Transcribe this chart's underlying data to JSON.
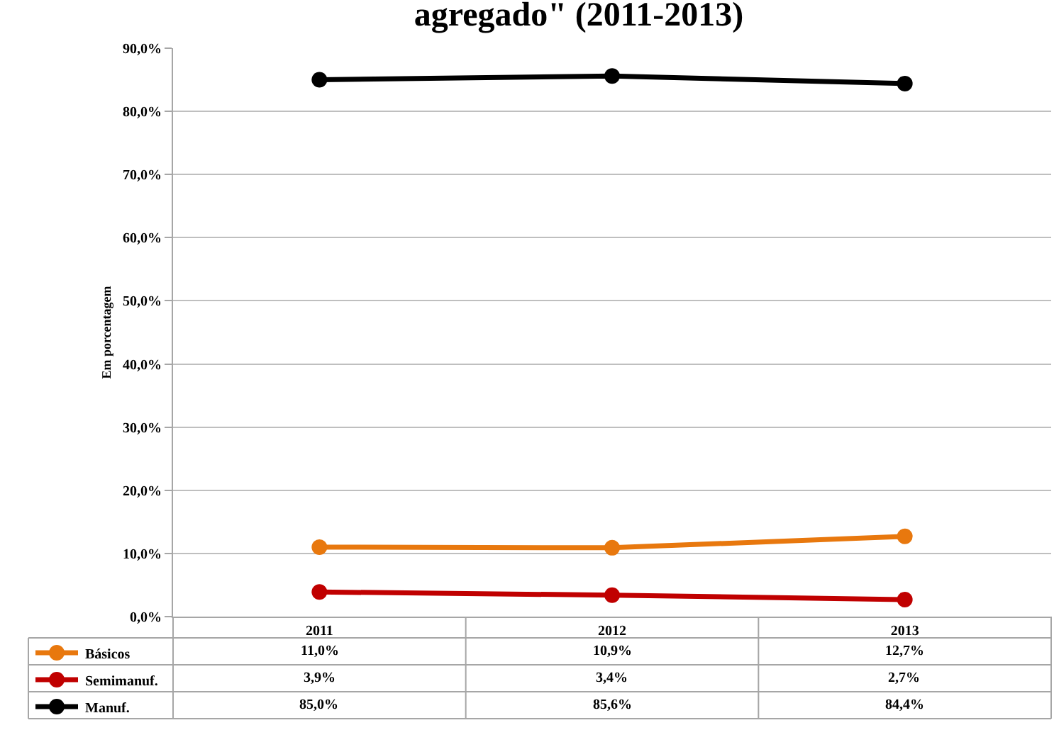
{
  "chart_data": {
    "type": "line",
    "title": "agregado\" (2011-2013)",
    "ylabel": "Em porcentagem",
    "categories": [
      "2011",
      "2012",
      "2013"
    ],
    "series": [
      {
        "name": "Básicos",
        "color": "#e8780e",
        "values": [
          11.0,
          10.9,
          12.7
        ],
        "value_labels": [
          "11,0%",
          "10,9%",
          "12,7%"
        ]
      },
      {
        "name": "Semimanuf.",
        "color": "#c00000",
        "values": [
          3.9,
          3.4,
          2.7
        ],
        "value_labels": [
          "3,9%",
          "3,4%",
          "2,7%"
        ]
      },
      {
        "name": "Manuf.",
        "color": "#000000",
        "values": [
          85.0,
          85.6,
          84.4
        ],
        "value_labels": [
          "85,0%",
          "85,6%",
          "84,4%"
        ]
      }
    ],
    "ylim": [
      0,
      90
    ],
    "yticks": [
      {
        "value": 0,
        "label": "0,0%"
      },
      {
        "value": 10,
        "label": "10,0%"
      },
      {
        "value": 20,
        "label": "20,0%"
      },
      {
        "value": 30,
        "label": "30,0%"
      },
      {
        "value": 40,
        "label": "40,0%"
      },
      {
        "value": 50,
        "label": "50,0%"
      },
      {
        "value": 60,
        "label": "60,0%"
      },
      {
        "value": 70,
        "label": "70,0%"
      },
      {
        "value": 80,
        "label": "80,0%"
      },
      {
        "value": 90,
        "label": "90,0%"
      }
    ],
    "grid": "y",
    "legend": "bottom left",
    "marker": "circle",
    "line_style": "solid"
  }
}
